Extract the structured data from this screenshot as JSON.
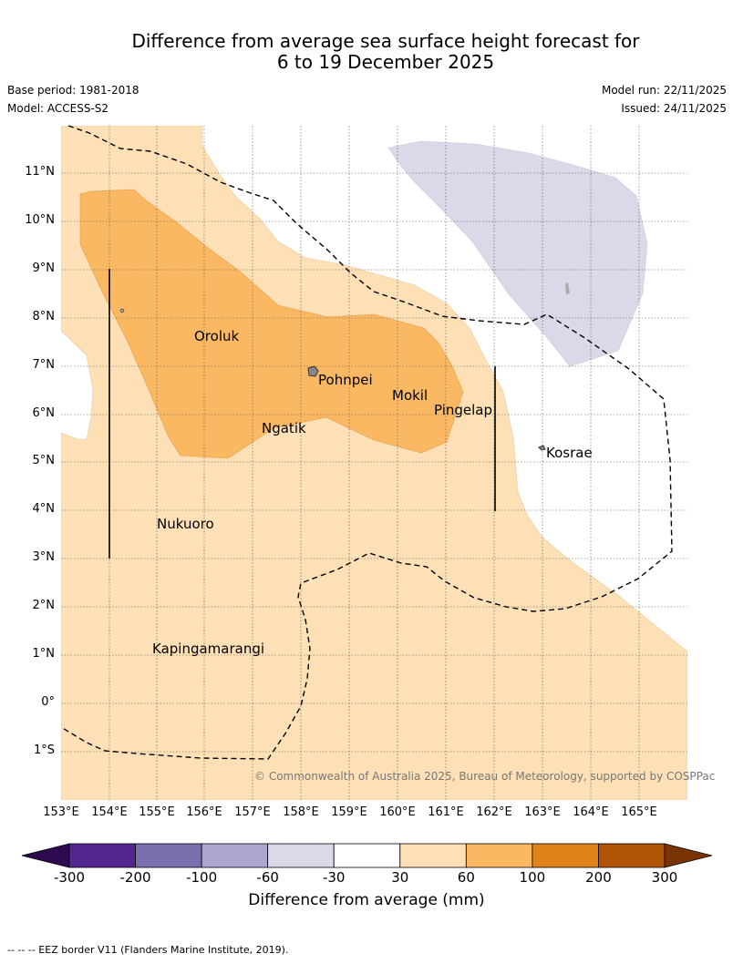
{
  "header": {
    "title_line1": "Difference from average sea surface height forecast for",
    "title_line2": "6 to 19 December 2025",
    "base_period": "Base period: 1981-2018",
    "model": "Model: ACCESS-S2",
    "model_run": "Model run: 22/11/2025",
    "issued": "Issued: 24/11/2025"
  },
  "map": {
    "latitude_labels": [
      "11°N",
      "10°N",
      "9°N",
      "8°N",
      "7°N",
      "6°N",
      "5°N",
      "4°N",
      "3°N",
      "2°N",
      "1°N",
      "0°",
      "1°S"
    ],
    "longitude_labels": [
      "153°E",
      "154°E",
      "155°E",
      "156°E",
      "157°E",
      "158°E",
      "159°E",
      "160°E",
      "161°E",
      "162°E",
      "163°E",
      "164°E",
      "165°E"
    ],
    "places": [
      "Oroluk",
      "Pohnpei",
      "Mokil",
      "Pingelap",
      "Ngatik",
      "Kosrae",
      "Nukuoro",
      "Kapingamarangi"
    ],
    "copyright": "© Commonwealth of Australia 2025, Bureau of Meteorology, supported by COSPPac"
  },
  "colorbar": {
    "ticks": [
      "-300",
      "-200",
      "-100",
      "-60",
      "-30",
      "30",
      "60",
      "100",
      "200",
      "300"
    ],
    "colors": [
      "#2d0b4e",
      "#54278f",
      "#7c6fae",
      "#ada6cf",
      "#d9d9ea",
      "#ffffff",
      "#fde0b5",
      "#fbb863",
      "#e0821a",
      "#b05507",
      "#7a3304"
    ],
    "label": "Difference from average (mm)"
  },
  "footnote": "--  --  -- EEZ border V11 (Flanders Marine Institute, 2019)."
}
